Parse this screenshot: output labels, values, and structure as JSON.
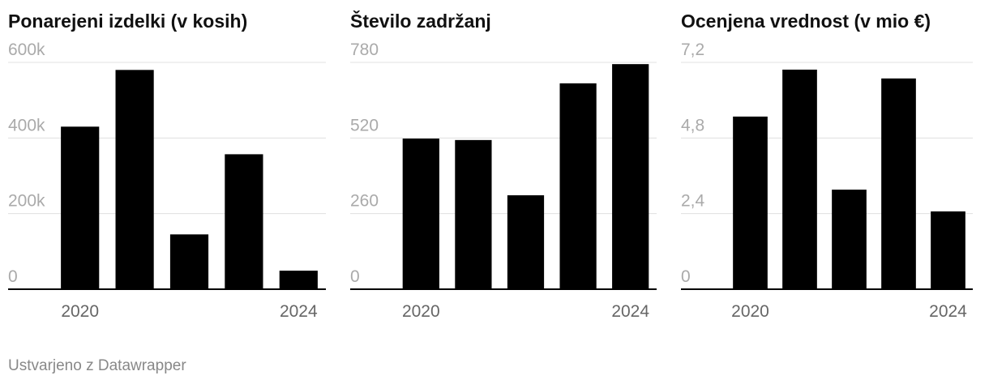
{
  "chart_data": [
    {
      "type": "bar",
      "title": "Ponarejeni izdelki (v kosih)",
      "categories": [
        "2020",
        null,
        null,
        null,
        "2024"
      ],
      "values": [
        430000,
        580000,
        145000,
        357000,
        49000
      ],
      "color": "#000000",
      "ylim": [
        0,
        600000
      ],
      "yticks": [
        0,
        {
          "value": 200000,
          "label": "200k"
        },
        {
          "value": 400000,
          "label": "400k"
        },
        {
          "value": 600000,
          "label": "600k"
        }
      ],
      "grid": true
    },
    {
      "type": "bar",
      "title": "Število zadržanj",
      "categories": [
        "2020",
        null,
        null,
        null,
        "2024"
      ],
      "values": [
        518,
        513,
        323,
        708,
        774
      ],
      "color": "#000000",
      "ylim": [
        0,
        780
      ],
      "yticks": [
        0,
        260,
        520,
        780
      ],
      "grid": true
    },
    {
      "type": "bar",
      "title": "Ocenjena vrednost (v mio €)",
      "categories": [
        "2020",
        null,
        null,
        null,
        "2024"
      ],
      "values": [
        5.48,
        6.97,
        3.16,
        6.69,
        2.47
      ],
      "color": "#000000",
      "ylim": [
        0,
        7.2
      ],
      "yticks": [
        0,
        {
          "value": 2.4,
          "label": "2,4"
        },
        {
          "value": 4.8,
          "label": "4,8"
        },
        {
          "value": 7.2,
          "label": "7,2"
        }
      ],
      "grid": true
    }
  ],
  "footer": "Ustvarjeno z Datawrapper"
}
